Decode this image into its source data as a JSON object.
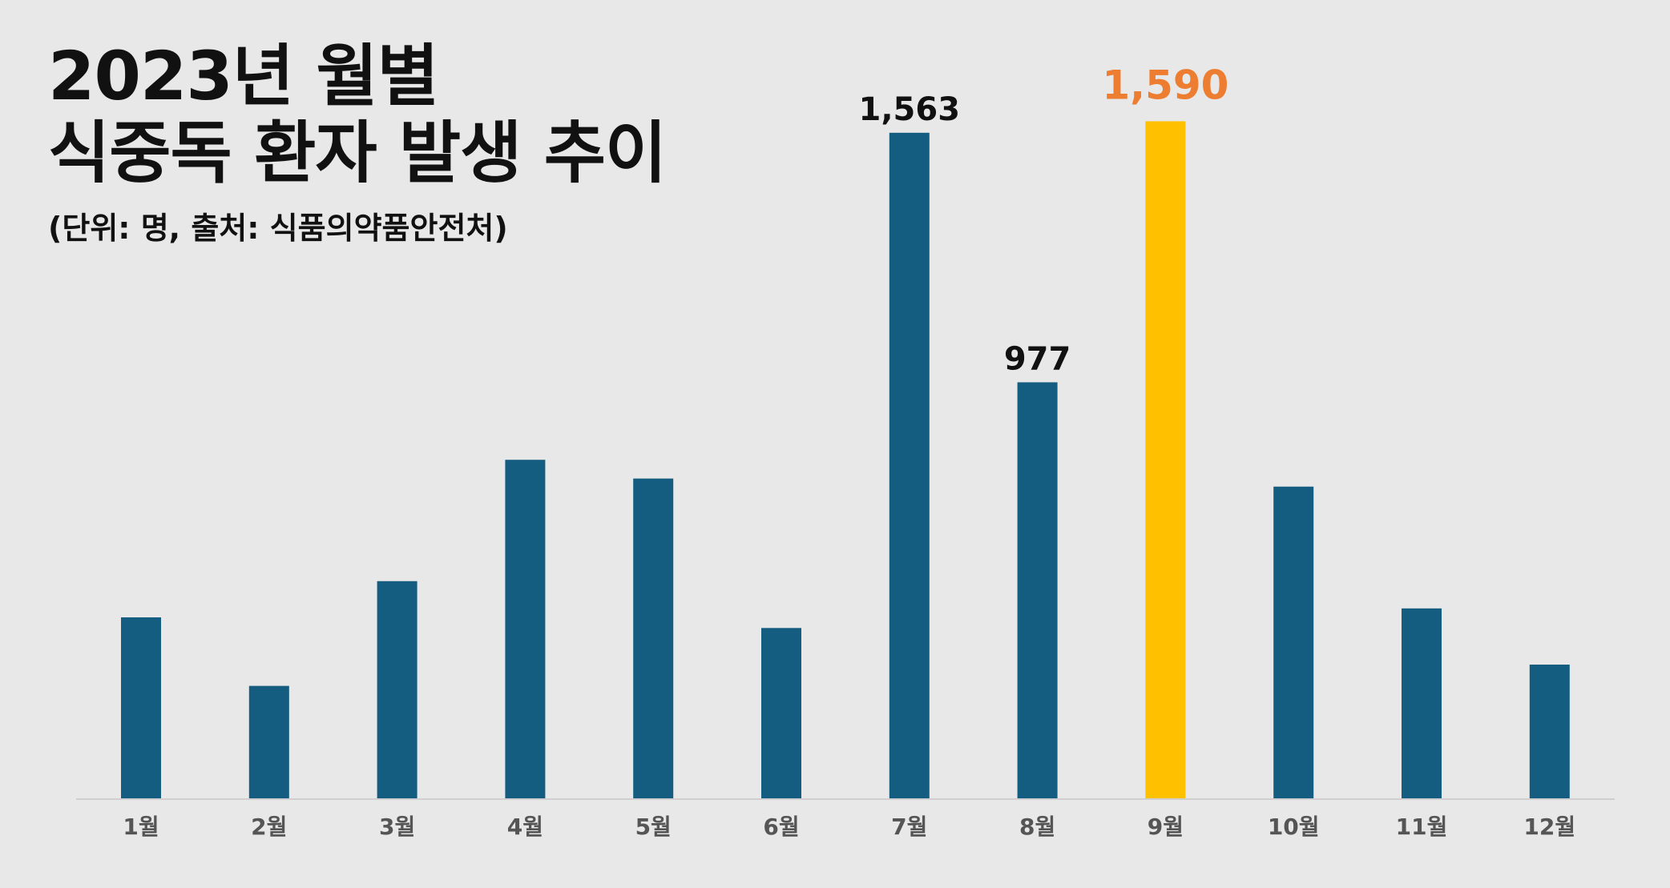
{
  "title_lines": [
    "2023년 월별",
    "식중독 환자 발생 추이"
  ],
  "subtitle": "(단위: 명, 출처: 식품의약품안전처)",
  "chart_data": {
    "type": "bar",
    "title": "2023년 월별 식중독 환자 발생 추이",
    "subtitle": "(단위: 명, 출처: 식품의약품안전처)",
    "categories": [
      "1월",
      "2월",
      "3월",
      "4월",
      "5월",
      "6월",
      "7월",
      "8월",
      "9월",
      "10월",
      "11월",
      "12월"
    ],
    "values": [
      425,
      264,
      510,
      795,
      751,
      400,
      1563,
      977,
      1590,
      732,
      446,
      314
    ],
    "data_labels": [
      "",
      "",
      "",
      "",
      "",
      "",
      "1,563",
      "977",
      "1,590",
      "",
      "",
      ""
    ],
    "highlight_index": 8,
    "ylim": [
      0,
      1700
    ],
    "grid": false,
    "legend": "none",
    "colors": {
      "bar": "#155d80",
      "highlight_bar": "#ffc000",
      "highlight_label": "#ed7d31",
      "label": "#111111",
      "tick_label": "#555555",
      "axis": "#cfcfcf"
    }
  }
}
